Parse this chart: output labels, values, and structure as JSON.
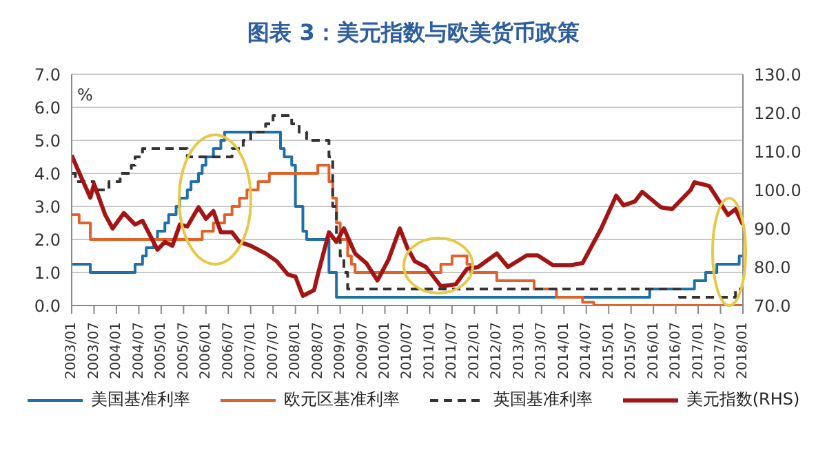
{
  "chart_data": {
    "type": "line",
    "title": "图表 3：美元指数与欧美货币政策",
    "ylabel": "%",
    "xlim": [
      "2003-01",
      "2018-01"
    ],
    "xticks": [
      {
        "value": "2003-01",
        "label": "2003/01"
      },
      {
        "value": "2003-07",
        "label": "2003/07"
      },
      {
        "value": "2004-01",
        "label": "2004/01"
      },
      {
        "value": "2004-07",
        "label": "2004/07"
      },
      {
        "value": "2005-01",
        "label": "2005/01"
      },
      {
        "value": "2005-07",
        "label": "2005/07"
      },
      {
        "value": "2006-01",
        "label": "2006/01"
      },
      {
        "value": "2006-07",
        "label": "2006/07"
      },
      {
        "value": "2007-01",
        "label": "2007/01"
      },
      {
        "value": "2007-07",
        "label": "2007/07"
      },
      {
        "value": "2008-01",
        "label": "2008/01"
      },
      {
        "value": "2008-07",
        "label": "2008/07"
      },
      {
        "value": "2009-01",
        "label": "2009/01"
      },
      {
        "value": "2009-07",
        "label": "2009/07"
      },
      {
        "value": "2010-01",
        "label": "2010/01"
      },
      {
        "value": "2010-07",
        "label": "2010/07"
      },
      {
        "value": "2011-01",
        "label": "2011/01"
      },
      {
        "value": "2011-07",
        "label": "2011/07"
      },
      {
        "value": "2012-01",
        "label": "2012/01"
      },
      {
        "value": "2012-07",
        "label": "2012/07"
      },
      {
        "value": "2013-01",
        "label": "2013/01"
      },
      {
        "value": "2013-07",
        "label": "2013/07"
      },
      {
        "value": "2014-01",
        "label": "2014/01"
      },
      {
        "value": "2014-07",
        "label": "2014/07"
      },
      {
        "value": "2015-01",
        "label": "2015/01"
      },
      {
        "value": "2015-07",
        "label": "2015/07"
      },
      {
        "value": "2016-01",
        "label": "2016/01"
      },
      {
        "value": "2016-07",
        "label": "2016/07"
      },
      {
        "value": "2017-01",
        "label": "2017/01"
      },
      {
        "value": "2017-07",
        "label": "2017/07"
      },
      {
        "value": "2018-01",
        "label": "2018/01"
      }
    ],
    "ylim": [
      0,
      7
    ],
    "yticks": [
      {
        "value": 0,
        "label": "0.0"
      },
      {
        "value": 1,
        "label": "1.0"
      },
      {
        "value": 2,
        "label": "2.0"
      },
      {
        "value": 3,
        "label": "3.0"
      },
      {
        "value": 4,
        "label": "4.0"
      },
      {
        "value": 5,
        "label": "5.0"
      },
      {
        "value": 6,
        "label": "6.0"
      },
      {
        "value": 7,
        "label": "7.0"
      }
    ],
    "y2lim": [
      70,
      130
    ],
    "y2ticks": [
      {
        "value": 70,
        "label": "70.0"
      },
      {
        "value": 80,
        "label": "80.0"
      },
      {
        "value": 90,
        "label": "90.0"
      },
      {
        "value": 100,
        "label": "100.0"
      },
      {
        "value": 110,
        "label": "110.0"
      },
      {
        "value": 120,
        "label": "120.0"
      },
      {
        "value": 130,
        "label": "130.0"
      }
    ],
    "grid": "y",
    "legend": "bottom",
    "marker": "none",
    "series": [
      {
        "name": "美国基准利率",
        "type": "step",
        "color": "#1f6fa8",
        "line_style": "solid",
        "x": [
          "2003-01",
          "2003-06",
          "2004-06",
          "2004-08",
          "2004-09",
          "2004-11",
          "2004-12",
          "2005-02",
          "2005-03",
          "2005-05",
          "2005-06",
          "2005-08",
          "2005-09",
          "2005-11",
          "2005-12",
          "2006-01",
          "2006-03",
          "2006-05",
          "2006-06",
          "2007-09",
          "2007-10",
          "2007-12",
          "2008-01",
          "2008-03",
          "2008-04",
          "2008-10",
          "2008-12",
          "2015-12",
          "2016-12",
          "2017-03",
          "2017-06",
          "2017-12",
          "2018-01"
        ],
        "values": [
          1.25,
          1.0,
          1.25,
          1.5,
          1.75,
          2.0,
          2.25,
          2.5,
          2.75,
          3.0,
          3.25,
          3.5,
          3.75,
          4.0,
          4.25,
          4.5,
          4.75,
          5.0,
          5.25,
          4.75,
          4.5,
          4.25,
          3.0,
          2.25,
          2.0,
          1.0,
          0.25,
          0.5,
          0.75,
          1.0,
          1.25,
          1.5,
          1.5
        ]
      },
      {
        "name": "欧元区基准利率",
        "type": "step",
        "color": "#e0622a",
        "line_style": "solid",
        "x": [
          "2003-01",
          "2003-03",
          "2003-06",
          "2005-12",
          "2006-03",
          "2006-06",
          "2006-08",
          "2006-10",
          "2006-12",
          "2007-03",
          "2007-06",
          "2008-07",
          "2008-10",
          "2008-11",
          "2008-12",
          "2009-01",
          "2009-03",
          "2009-04",
          "2009-05",
          "2011-04",
          "2011-07",
          "2011-11",
          "2011-12",
          "2012-07",
          "2013-05",
          "2013-11",
          "2014-06",
          "2014-09",
          "2018-01"
        ],
        "values": [
          2.75,
          2.5,
          2.0,
          2.25,
          2.5,
          2.75,
          3.0,
          3.25,
          3.5,
          3.75,
          4.0,
          4.25,
          3.75,
          3.25,
          2.5,
          2.0,
          1.5,
          1.25,
          1.0,
          1.25,
          1.5,
          1.25,
          1.0,
          0.75,
          0.5,
          0.25,
          0.1,
          0.0,
          0.0
        ]
      },
      {
        "name": "英国基准利率",
        "type": "step",
        "color": "#333333",
        "line_style": "dashed",
        "x": [
          "2003-01",
          "2003-02",
          "2003-07",
          "2003-11",
          "2004-02",
          "2004-05",
          "2004-06",
          "2004-08",
          "2005-08",
          "2006-08",
          "2006-11",
          "2007-01",
          "2007-05",
          "2007-07",
          "2007-12",
          "2008-02",
          "2008-04",
          "2008-10",
          "2008-11",
          "2008-12",
          "2009-01",
          "2009-02",
          "2009-03",
          "2016-08",
          "2017-11",
          "2018-01"
        ],
        "values": [
          4.0,
          3.75,
          3.5,
          3.75,
          4.0,
          4.25,
          4.5,
          4.75,
          4.5,
          4.75,
          5.0,
          5.25,
          5.5,
          5.75,
          5.5,
          5.25,
          5.0,
          4.5,
          3.0,
          2.0,
          1.5,
          1.0,
          0.5,
          0.25,
          0.5,
          0.5
        ]
      },
      {
        "name": "美元指数(RHS)",
        "type": "line",
        "axis": "y2",
        "color": "#a31515",
        "line_style": "solid",
        "x": [
          "2003-01",
          "2003-03",
          "2003-06",
          "2003-07",
          "2003-10",
          "2003-12",
          "2004-03",
          "2004-06",
          "2004-08",
          "2004-12",
          "2005-02",
          "2005-04",
          "2005-06",
          "2005-08",
          "2005-11",
          "2006-01",
          "2006-03",
          "2006-05",
          "2006-08",
          "2006-10",
          "2007-01",
          "2007-05",
          "2007-08",
          "2007-11",
          "2008-01",
          "2008-03",
          "2008-06",
          "2008-07",
          "2008-10",
          "2008-12",
          "2009-02",
          "2009-05",
          "2009-08",
          "2009-11",
          "2010-02",
          "2010-05",
          "2010-07",
          "2010-09",
          "2010-12",
          "2011-04",
          "2011-08",
          "2011-11",
          "2012-02",
          "2012-07",
          "2012-10",
          "2013-03",
          "2013-06",
          "2013-10",
          "2014-03",
          "2014-06",
          "2014-11",
          "2015-03",
          "2015-05",
          "2015-08",
          "2015-10",
          "2016-03",
          "2016-06",
          "2016-11",
          "2016-12",
          "2017-04",
          "2017-09",
          "2017-11",
          "2018-01"
        ],
        "values": [
          109,
          104.5,
          98,
          101.5,
          93.5,
          90,
          94,
          91,
          92,
          84.5,
          86.5,
          85.5,
          91,
          90.5,
          95.5,
          92.5,
          94.5,
          89,
          89,
          86.5,
          85.5,
          83.5,
          81.5,
          78,
          77.5,
          72.5,
          74,
          78,
          89,
          86.5,
          90,
          83.5,
          81,
          76.5,
          82,
          90,
          85,
          81.5,
          80,
          75,
          75.5,
          79.5,
          80,
          83.5,
          80,
          83,
          83,
          80.5,
          80.5,
          81,
          90,
          98.5,
          96,
          97,
          99.5,
          95.5,
          95,
          100,
          102,
          101,
          93.5,
          95,
          91
        ]
      }
    ]
  }
}
